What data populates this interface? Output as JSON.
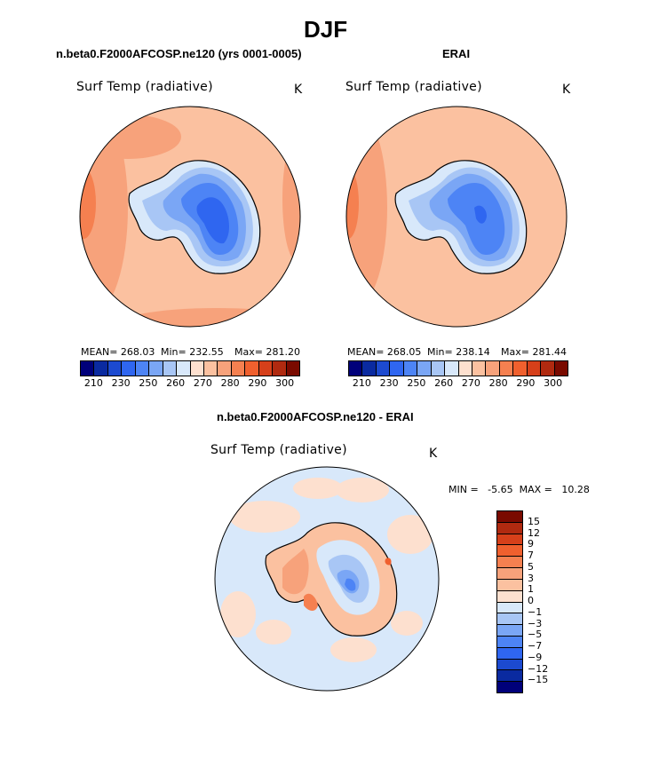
{
  "season": "DJF",
  "panels": {
    "model": {
      "title": "n.beta0.F2000AFCOSP.ne120 (yrs 0001-0005)",
      "var_label": "Surf Temp (radiative)",
      "units": "K",
      "mean_text": "MEAN= 268.03",
      "min_text": "Min= 232.55",
      "max_text": "Max= 281.20"
    },
    "obs": {
      "title": "ERAI",
      "var_label": "Surf Temp (radiative)",
      "units": "K",
      "mean_text": "MEAN= 268.05",
      "min_text": "Min= 238.14",
      "max_text": "Max= 281.44"
    },
    "diff": {
      "title": "n.beta0.F2000AFCOSP.ne120 - ERAI",
      "var_label": "Surf Temp (radiative)",
      "units": "K",
      "minmax_text": "MIN =   -5.65  MAX =   10.28"
    }
  },
  "colorbar_abs": {
    "colors": [
      "#00007a",
      "#0a2aa0",
      "#1c4ad0",
      "#2f66f0",
      "#4d84f5",
      "#7aa6f5",
      "#a8c6f5",
      "#d8e8fa",
      "#fde0cf",
      "#fbc1a0",
      "#f7a27b",
      "#f58050",
      "#f0602e",
      "#d6401a",
      "#b02a10",
      "#7a0a00"
    ],
    "tick_labels": [
      "210",
      "230",
      "250",
      "260",
      "270",
      "280",
      "290",
      "300"
    ]
  },
  "colorbar_diff": {
    "colors": [
      "#7a0a00",
      "#b02a10",
      "#d6401a",
      "#f0602e",
      "#f58050",
      "#f7a27b",
      "#fbc1a0",
      "#fde0cf",
      "#d8e8fa",
      "#a8c6f5",
      "#7aa6f5",
      "#4d84f5",
      "#2f66f0",
      "#1c4ad0",
      "#0a2aa0",
      "#00007a"
    ],
    "tick_labels": [
      "15",
      "12",
      "9",
      "7",
      "5",
      "3",
      "1",
      "0",
      "−1",
      "−3",
      "−5",
      "−7",
      "−9",
      "−12",
      "−15"
    ]
  }
}
